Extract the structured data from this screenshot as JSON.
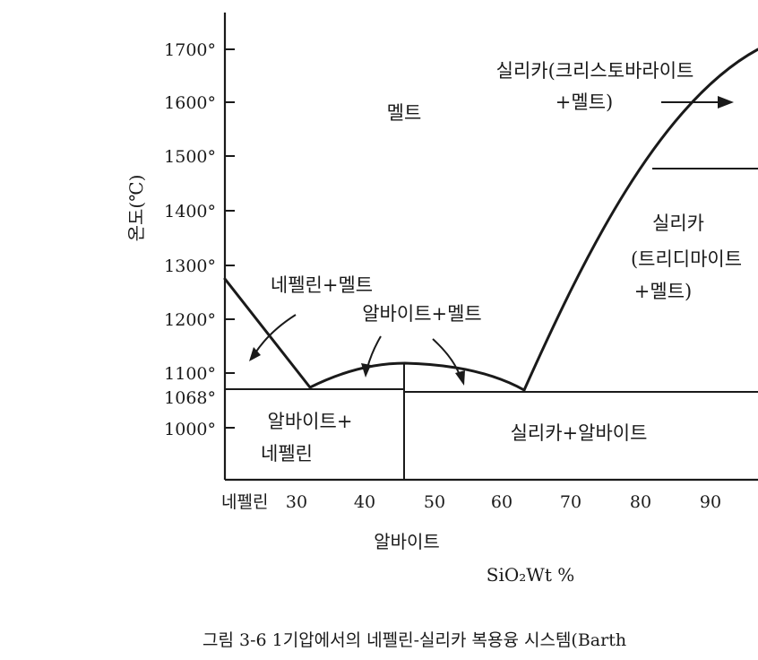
{
  "y_ticks": [
    {
      "label": "1700°",
      "value": 1700
    },
    {
      "label": "1600°",
      "value": 1600
    },
    {
      "label": "1500°",
      "value": 1500
    },
    {
      "label": "1400°",
      "value": 1400
    },
    {
      "label": "1300°",
      "value": 1300
    },
    {
      "label": "1200°",
      "value": 1200
    },
    {
      "label": "1100°",
      "value": 1100
    },
    {
      "label": "1068°",
      "value": 1068
    },
    {
      "label": "1000°",
      "value": 1000
    }
  ],
  "x_ticks": [
    {
      "label": "30",
      "value": 30
    },
    {
      "label": "40",
      "value": 40
    },
    {
      "label": "50",
      "value": 50
    },
    {
      "label": "60",
      "value": 60
    },
    {
      "label": "70",
      "value": 70
    },
    {
      "label": "80",
      "value": 80
    },
    {
      "label": "90",
      "value": 90
    }
  ],
  "axis": {
    "y_title": "온도(℃)",
    "x_start_label": "네펠린",
    "x_mineral_label": "알바이트",
    "x_title": "SiO₂Wt %"
  },
  "regions": {
    "melt": "멜트",
    "cristobalite_line1": "실리카(크리스토바라이트",
    "cristobalite_line2": "+멜트)",
    "tridymite_line1": "실리카",
    "tridymite_line2": "(트리디마이트",
    "tridymite_line3": "+멜트)",
    "nepheline_melt": "네펠린+멜트",
    "albite_melt": "알바이트+멜트",
    "albite_nepheline_line1": "알바이트+",
    "albite_nepheline_line2": "네펠린",
    "silica_albite": "실리카+알바이트"
  },
  "caption": "그림 3-6  1기압에서의 네펠린-실리카 복용융 시스템(Barth",
  "colors": {
    "ink": "#1a1a1a",
    "background": "#ffffff"
  }
}
